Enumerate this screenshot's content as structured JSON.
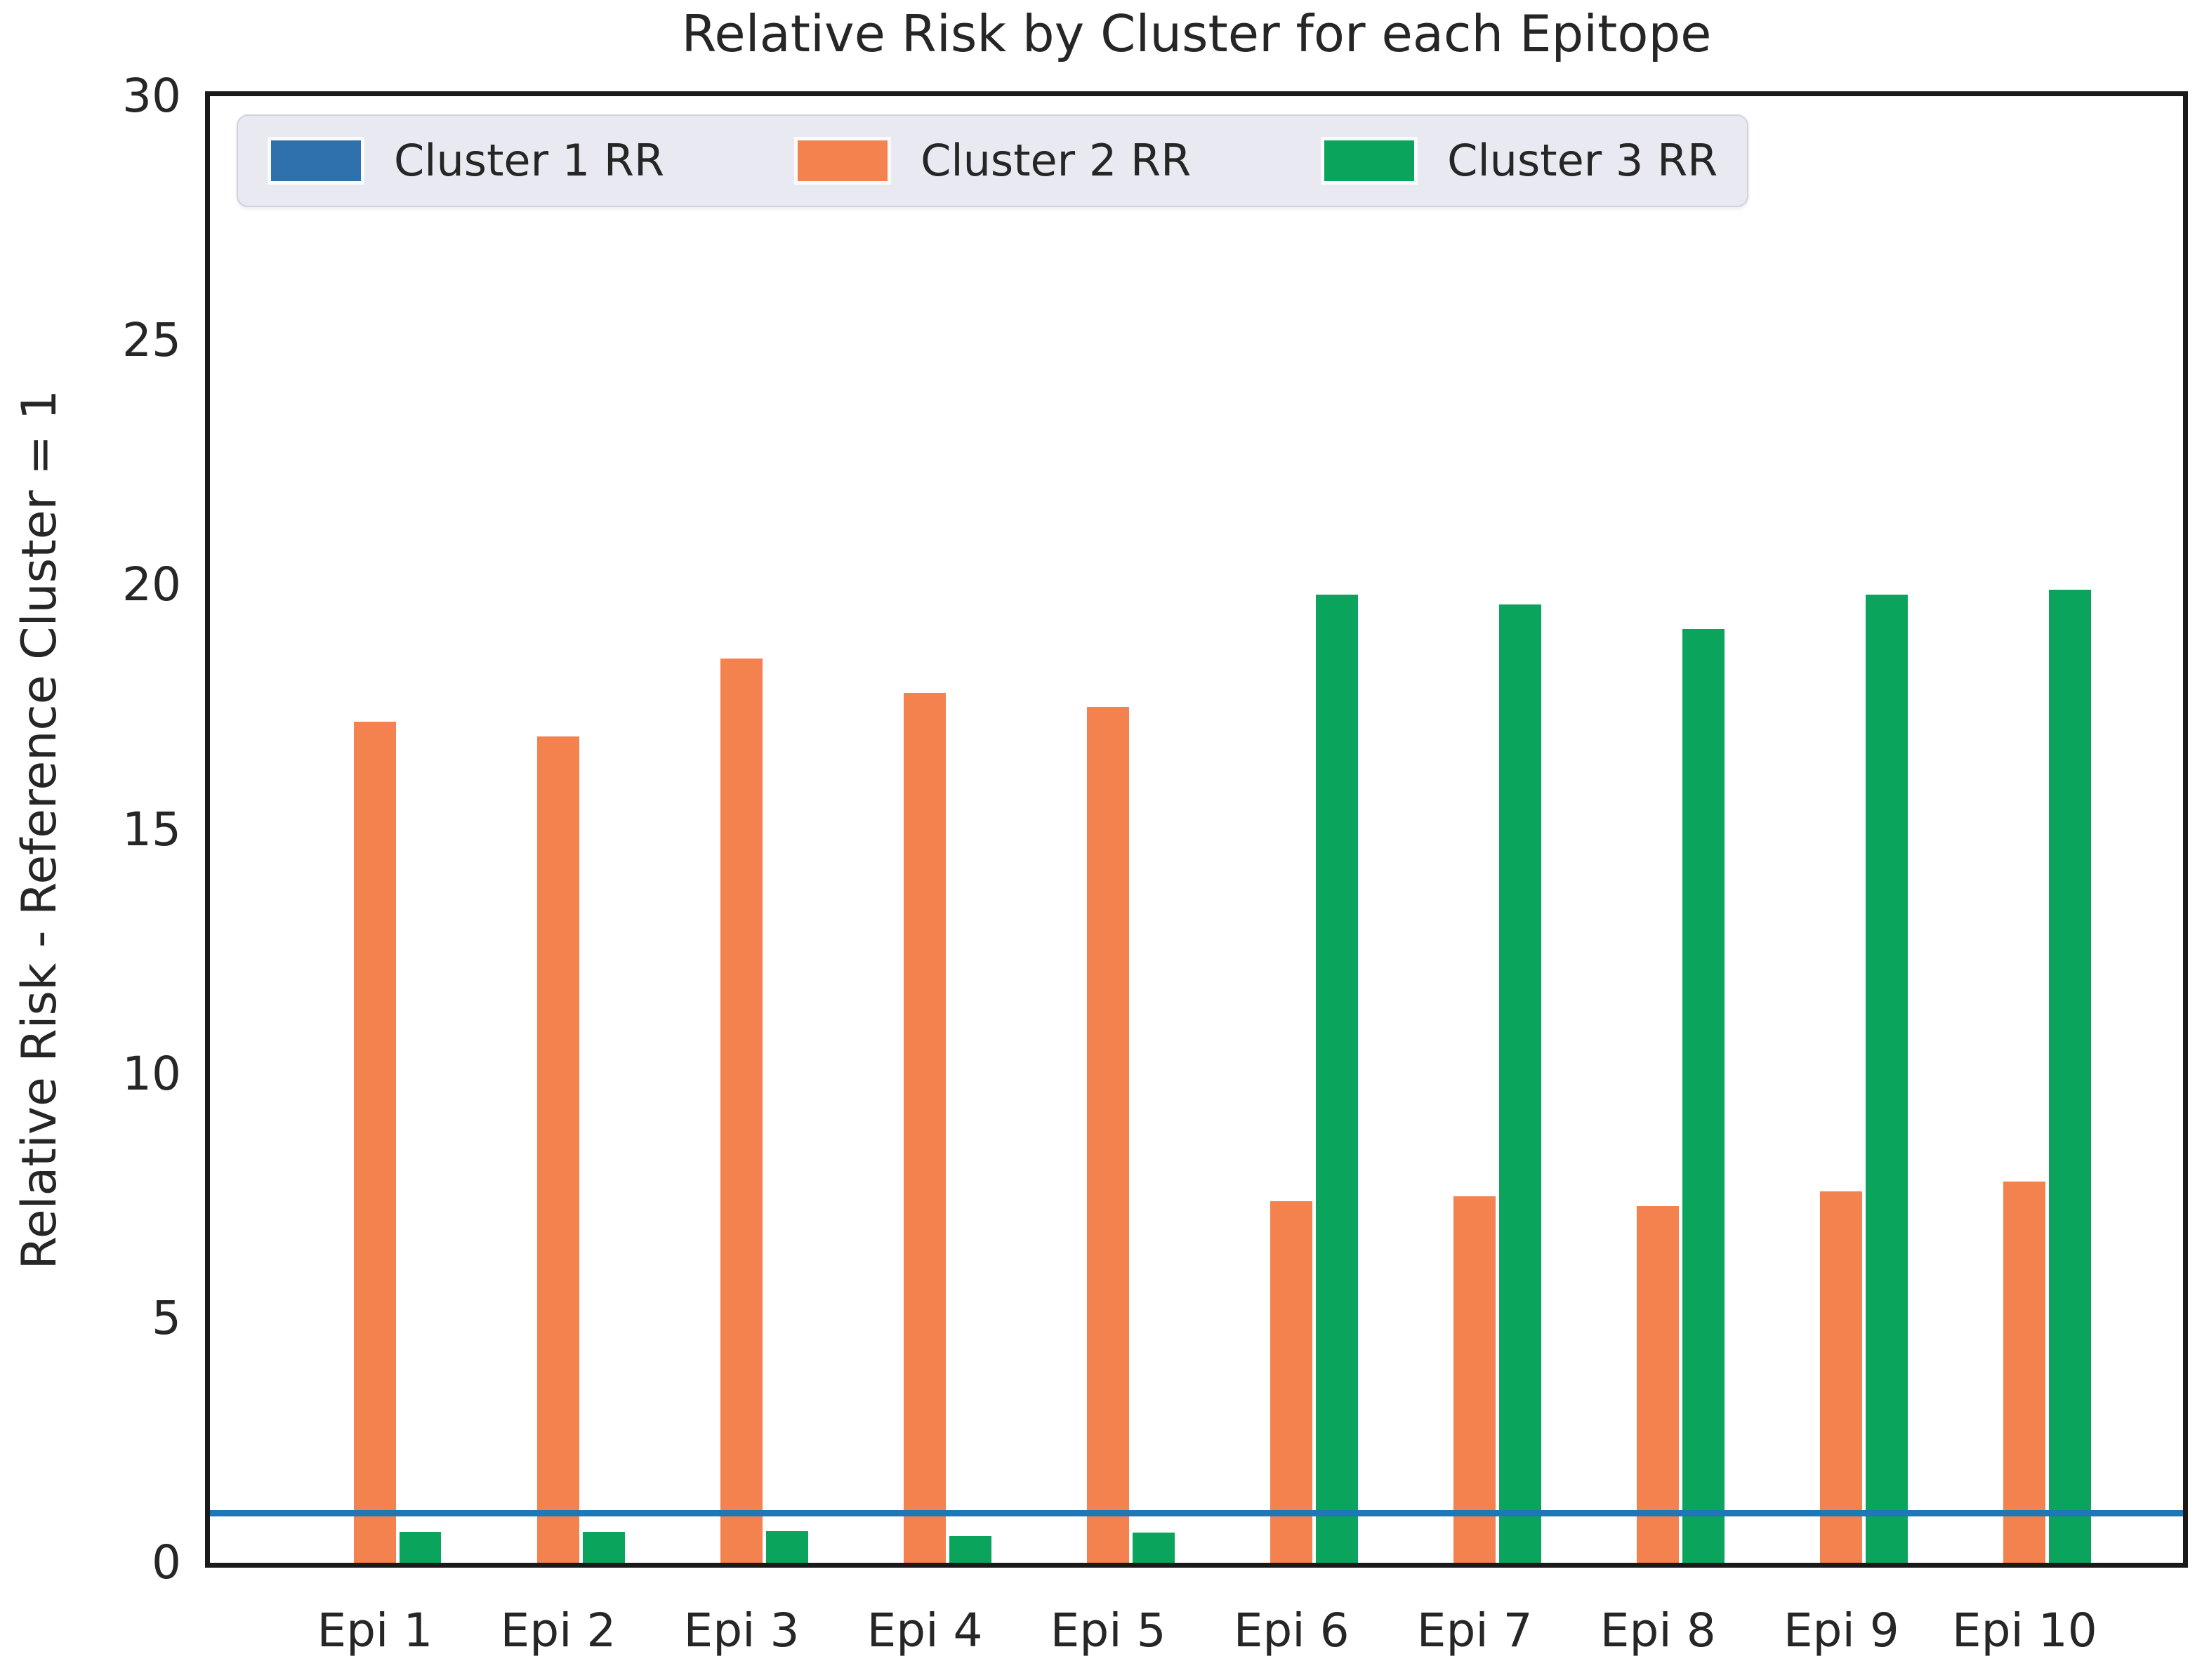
{
  "chart_data": {
    "type": "bar",
    "title": "Relative Risk by Cluster for each Epitope",
    "xlabel": "",
    "ylabel": "Relative Risk - Reference Cluster = 1",
    "categories": [
      "Epi 1",
      "Epi 2",
      "Epi 3",
      "Epi 4",
      "Epi 5",
      "Epi 6",
      "Epi 7",
      "Epi 8",
      "Epi 9",
      "Epi 10"
    ],
    "series": [
      {
        "name": "Cluster 1 RR",
        "color": "#2f71ad",
        "values": [
          0,
          0,
          0,
          0,
          0,
          0,
          0,
          0,
          0,
          0
        ],
        "note": "reference cluster - no visible bars, shown as horizontal line at RR = 1"
      },
      {
        "name": "Cluster 2 RR",
        "color": "#f4824e",
        "values": [
          17.2,
          16.9,
          18.5,
          17.8,
          17.5,
          7.4,
          7.5,
          7.3,
          7.6,
          7.8
        ]
      },
      {
        "name": "Cluster 3 RR",
        "color": "#0ba45d",
        "values": [
          0.63,
          0.63,
          0.64,
          0.54,
          0.62,
          19.8,
          19.6,
          19.1,
          19.8,
          19.9
        ]
      }
    ],
    "reference_line": {
      "y": 1.0,
      "color": "#1f77b4"
    },
    "ylim": [
      0,
      30
    ],
    "yticks": [
      0,
      5,
      10,
      15,
      20,
      25,
      30
    ],
    "grid": false,
    "legend_position": "upper left",
    "legend_labels": [
      "Cluster 1 RR",
      "Cluster 2 RR",
      "Cluster 3 RR"
    ]
  }
}
